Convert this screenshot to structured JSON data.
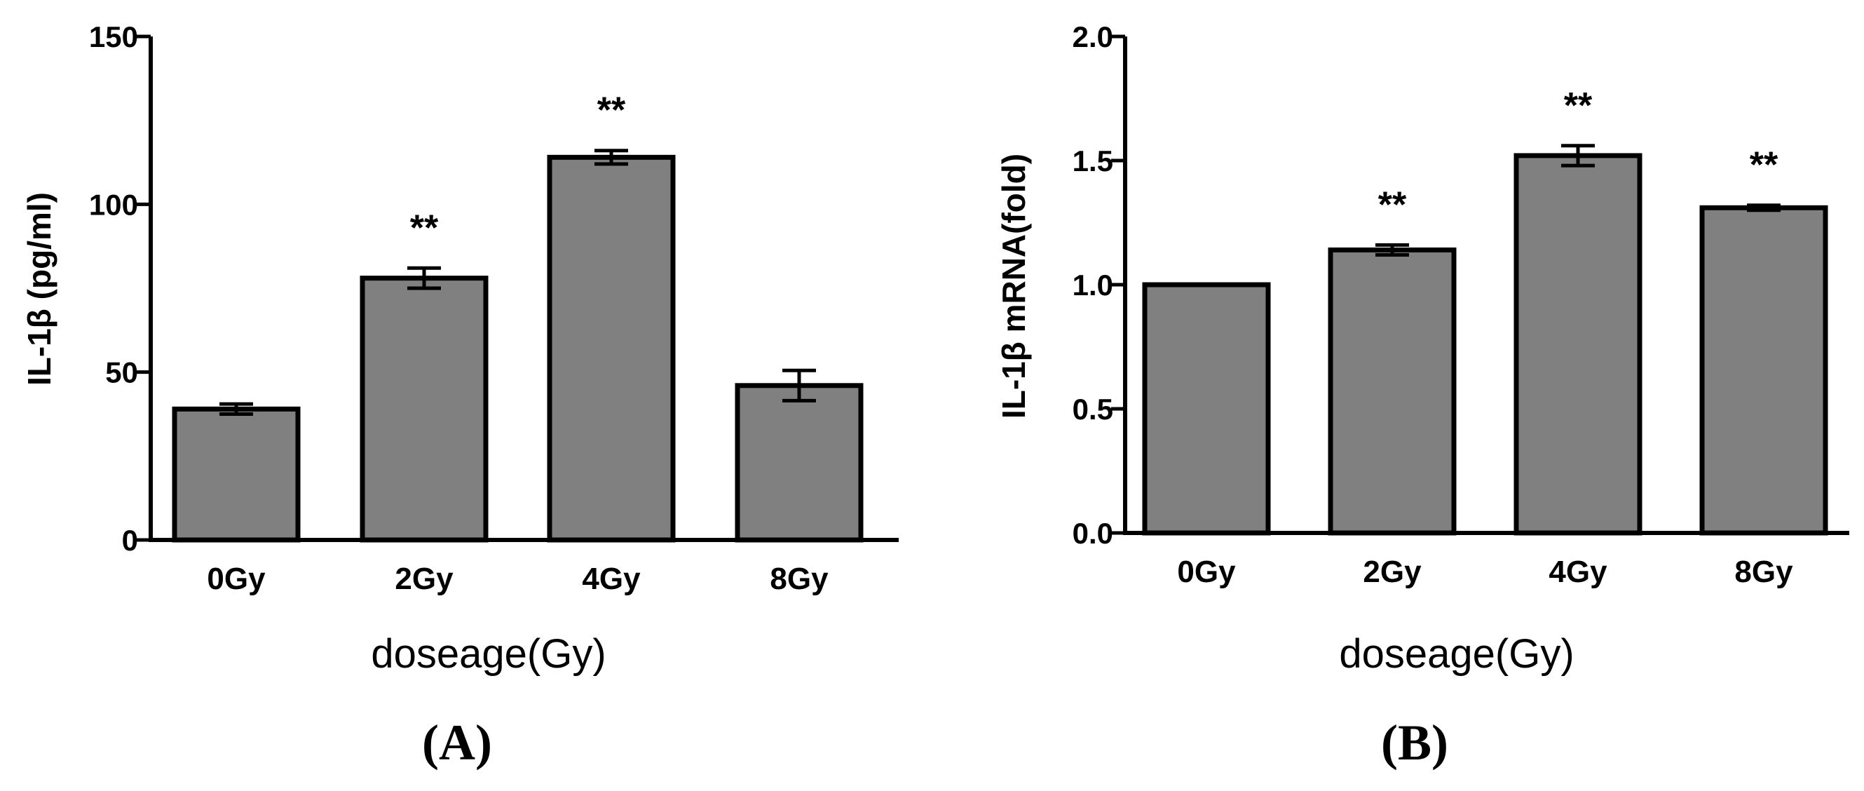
{
  "chart_data": [
    {
      "panel": "A",
      "type": "bar",
      "categories": [
        "0Gy",
        "2Gy",
        "4Gy",
        "8Gy"
      ],
      "values": [
        39,
        78,
        114,
        46
      ],
      "errors": [
        1.5,
        3,
        2,
        4.5
      ],
      "significance": [
        "",
        "**",
        "**",
        ""
      ],
      "ylim": [
        0,
        150
      ],
      "yticks": [
        0,
        50,
        100,
        150
      ],
      "ytick_labels": [
        "0",
        "50",
        "100",
        "150"
      ],
      "ylabel": "IL-1β (pg/ml)",
      "xlabel": "doseage(Gy)",
      "panel_label": "(A)",
      "bar_color": "#808080",
      "edge_color": "#000000",
      "grid": false
    },
    {
      "panel": "B",
      "type": "bar",
      "categories": [
        "0Gy",
        "2Gy",
        "4Gy",
        "8Gy"
      ],
      "values": [
        1.0,
        1.14,
        1.52,
        1.31
      ],
      "errors": [
        0,
        0.02,
        0.04,
        0.01
      ],
      "significance": [
        "",
        "**",
        "**",
        "**"
      ],
      "ylim": [
        0,
        2.0
      ],
      "yticks": [
        0,
        0.5,
        1.0,
        1.5,
        2.0
      ],
      "ytick_labels": [
        "0.0",
        "0.5",
        "1.0",
        "1.5",
        "2.0"
      ],
      "ylabel": "IL-1β  mRNA(fold)",
      "xlabel": "doseage(Gy)",
      "panel_label": "(B)",
      "bar_color": "#808080",
      "edge_color": "#000000",
      "grid": false
    }
  ]
}
